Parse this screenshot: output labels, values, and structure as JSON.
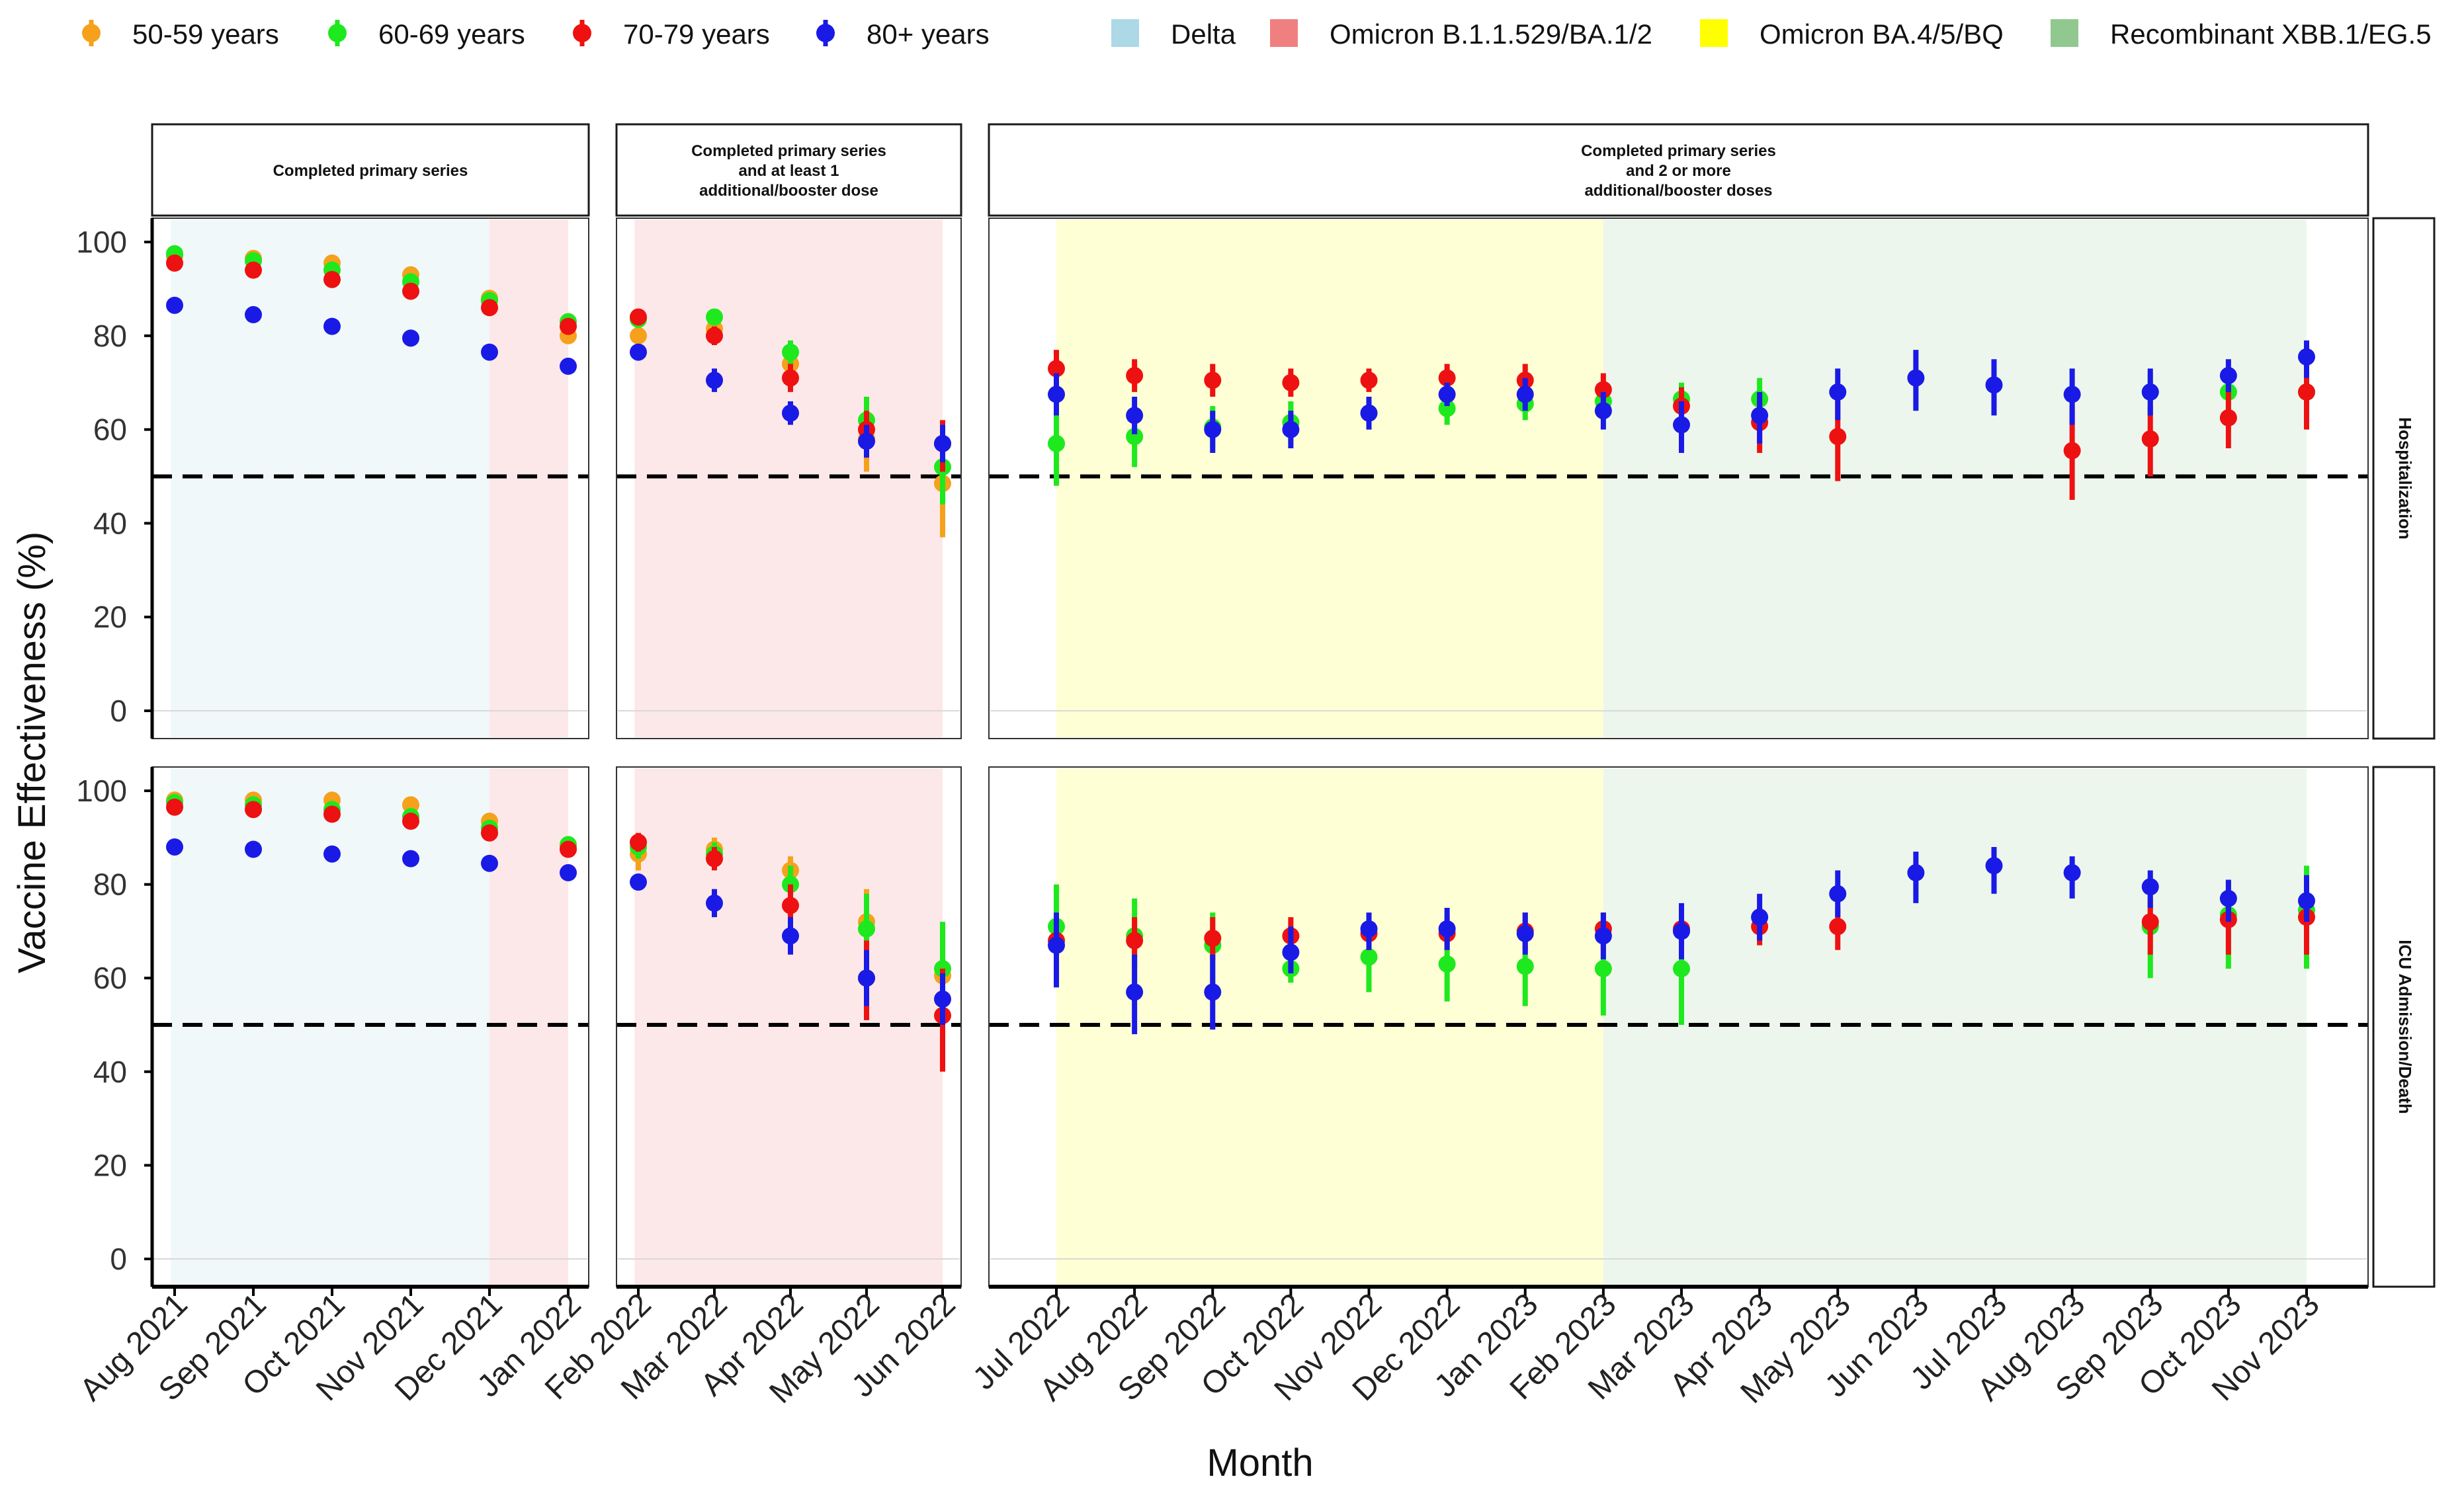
{
  "chart_data": {
    "type": "scatter",
    "ylabel": "Vaccine Effectiveness (%)",
    "xlabel": "Month",
    "ylim": [
      0,
      100
    ],
    "yticks": [
      0,
      20,
      40,
      60,
      80,
      100
    ],
    "reference_line": 50,
    "legend": {
      "placement": "top",
      "age_groups": [
        {
          "label": "50-59 years",
          "color": "#f5a11c"
        },
        {
          "label": "60-69 years",
          "color": "#1ee81e"
        },
        {
          "label": "70-79 years",
          "color": "#ee1111"
        },
        {
          "label": "80+ years",
          "color": "#1a1ae6"
        }
      ],
      "variants": [
        {
          "label": "Delta",
          "color": "#add8e6"
        },
        {
          "label": "Omicron B.1.1.529/BA.1/2",
          "color": "#f08080"
        },
        {
          "label": "Omicron BA.4/5/BQ",
          "color": "#ffff00"
        },
        {
          "label": "Recombinant XBB.1/EG.5",
          "color": "#90c890"
        }
      ]
    },
    "row_titles": [
      "Hospitalization",
      "ICU Admission/Death"
    ],
    "panels": [
      {
        "title": "Completed primary series",
        "months": [
          "Aug 2021",
          "Sep 2021",
          "Oct 2021",
          "Nov 2021",
          "Dec 2021",
          "Jan 2022"
        ],
        "bands": [
          {
            "variant": "Delta",
            "from": "Aug 2021",
            "to": "Dec 2021"
          },
          {
            "variant": "Omicron B.1.1.529/BA.1/2",
            "from": "Dec 2021",
            "to": "Jan 2022"
          }
        ],
        "hospitalization": [
          {
            "age": "50-59 years",
            "values": [
              97,
              96.5,
              95.5,
              93,
              88,
              80
            ]
          },
          {
            "age": "60-69 years",
            "values": [
              97.5,
              96,
              94,
              91.5,
              87.5,
              83
            ]
          },
          {
            "age": "70-79 years",
            "values": [
              95.5,
              94,
              92,
              89.5,
              86,
              82
            ]
          },
          {
            "age": "80+ years",
            "values": [
              86.5,
              84.5,
              82,
              79.5,
              76.5,
              73.5
            ]
          }
        ],
        "icu_death": [
          {
            "age": "50-59 years",
            "values": [
              98,
              98,
              98,
              97,
              93.5,
              88
            ]
          },
          {
            "age": "60-69 years",
            "values": [
              97.5,
              97,
              96,
              94.5,
              92,
              88.5
            ]
          },
          {
            "age": "70-79 years",
            "values": [
              96.5,
              96,
              95,
              93.5,
              91,
              87.5
            ]
          },
          {
            "age": "80+ years",
            "values": [
              88,
              87.5,
              86.5,
              85.5,
              84.5,
              82.5
            ]
          }
        ]
      },
      {
        "title": "Completed primary series\nand at least 1\nadditional/booster dose",
        "months": [
          "Feb 2022",
          "Mar 2022",
          "Apr 2022",
          "May 2022",
          "Jun 2022"
        ],
        "bands": [
          {
            "variant": "Omicron B.1.1.529/BA.1/2",
            "from": "Feb 2022",
            "to": "Jun 2022"
          }
        ],
        "hospitalization": [
          {
            "age": "50-59 years",
            "values": [
              80,
              81.5,
              74,
              58,
              48.5
            ],
            "ci": [
              [
                78,
                82
              ],
              [
                79,
                84
              ],
              [
                71,
                77
              ],
              [
                51,
                65
              ],
              [
                37,
                58
              ]
            ]
          },
          {
            "age": "60-69 years",
            "values": [
              83.5,
              84,
              76.5,
              62,
              52
            ],
            "ci": [
              [
                82,
                85
              ],
              [
                82.5,
                85.5
              ],
              [
                74,
                79
              ],
              [
                57,
                67
              ],
              [
                44,
                58
              ]
            ]
          },
          {
            "age": "70-79 years",
            "values": [
              84,
              80,
              71,
              60,
              57
            ],
            "ci": [
              [
                82.5,
                85.5
              ],
              [
                78,
                82
              ],
              [
                68,
                74
              ],
              [
                56,
                64
              ],
              [
                51,
                62
              ]
            ]
          },
          {
            "age": "80+ years",
            "values": [
              76.5,
              70.5,
              63.5,
              57.5,
              57
            ],
            "ci": [
              [
                75,
                78
              ],
              [
                68,
                73
              ],
              [
                61,
                66
              ],
              [
                54,
                61
              ],
              [
                53,
                61
              ]
            ]
          }
        ],
        "icu_death": [
          {
            "age": "50-59 years",
            "values": [
              86.5,
              87.5,
              83,
              72,
              60.5
            ],
            "ci": [
              [
                83,
                90
              ],
              [
                85,
                90
              ],
              [
                80,
                86
              ],
              [
                64,
                79
              ],
              [
                45,
                72
              ]
            ]
          },
          {
            "age": "60-69 years",
            "values": [
              88,
              86.5,
              80,
              70.5,
              62
            ],
            "ci": [
              [
                85.5,
                90.5
              ],
              [
                84,
                89
              ],
              [
                76,
                84
              ],
              [
                63,
                78
              ],
              [
                48,
                72
              ]
            ]
          },
          {
            "age": "70-79 years",
            "values": [
              89,
              85.5,
              75.5,
              60,
              52
            ],
            "ci": [
              [
                87,
                91
              ],
              [
                83,
                88
              ],
              [
                71,
                80
              ],
              [
                51,
                68
              ],
              [
                40,
                62
              ]
            ]
          },
          {
            "age": "80+ years",
            "values": [
              80.5,
              76,
              69,
              60,
              55.5
            ],
            "ci": [
              [
                79,
                82
              ],
              [
                73,
                79
              ],
              [
                65,
                73
              ],
              [
                54,
                66
              ],
              [
                50,
                61
              ]
            ]
          }
        ]
      },
      {
        "title": "Completed primary series\nand 2 or more\nadditional/booster doses",
        "months": [
          "Jul 2022",
          "Aug 2022",
          "Sep 2022",
          "Oct 2022",
          "Nov 2022",
          "Dec 2022",
          "Jan 2023",
          "Feb 2023",
          "Mar 2023",
          "Apr 2023",
          "May 2023",
          "Jun 2023",
          "Jul 2023",
          "Aug 2023",
          "Sep 2023",
          "Oct 2023",
          "Nov 2023"
        ],
        "bands": [
          {
            "variant": "Omicron BA.4/5/BQ",
            "from": "Jul 2022",
            "to": "Feb 2023"
          },
          {
            "variant": "Recombinant XBB.1/EG.5",
            "from": "Feb 2023",
            "to": "Nov 2023"
          }
        ],
        "hospitalization": [
          {
            "age": "60-69 years",
            "values": [
              57,
              58.5,
              60.5,
              61.5,
              63.5,
              64.5,
              65.5,
              66,
              66.5,
              66.5,
              null,
              null,
              null,
              null,
              68,
              68,
              68
            ],
            "ci": [
              [
                48,
                64
              ],
              [
                52,
                64
              ],
              [
                56,
                65
              ],
              [
                57,
                66
              ],
              [
                60,
                67
              ],
              [
                61,
                68
              ],
              [
                62,
                69
              ],
              [
                62,
                70
              ],
              [
                63,
                70
              ],
              [
                62,
                71
              ],
              null,
              null,
              null,
              null,
              [
                63,
                72
              ],
              [
                64,
                71
              ],
              [
                61,
                75
              ]
            ]
          },
          {
            "age": "70-79 years",
            "values": [
              73,
              71.5,
              70.5,
              70,
              70.5,
              71,
              70.5,
              68.5,
              65,
              61.5,
              58.5,
              null,
              null,
              55.5,
              58,
              62.5,
              68
            ],
            "ci": [
              [
                69,
                77
              ],
              [
                68,
                75
              ],
              [
                67,
                74
              ],
              [
                67,
                73
              ],
              [
                68,
                73
              ],
              [
                68.5,
                74
              ],
              [
                68,
                74
              ],
              [
                65,
                72
              ],
              [
                61,
                69
              ],
              [
                55,
                67
              ],
              [
                49,
                66
              ],
              null,
              null,
              [
                45,
                65
              ],
              [
                50,
                65
              ],
              [
                56,
                69
              ],
              [
                60,
                75
              ]
            ]
          },
          {
            "age": "80+ years",
            "values": [
              67.5,
              63,
              60,
              60,
              63.5,
              67.5,
              67.5,
              64,
              61,
              63,
              68,
              71,
              69.5,
              67.5,
              68,
              71.5,
              75.5
            ],
            "ci": [
              [
                63,
                72
              ],
              [
                59,
                67
              ],
              [
                55,
                64
              ],
              [
                56,
                64
              ],
              [
                60,
                67
              ],
              [
                65,
                70
              ],
              [
                64,
                71
              ],
              [
                60,
                68
              ],
              [
                55,
                66
              ],
              [
                57,
                68
              ],
              [
                62,
                73
              ],
              [
                64,
                77
              ],
              [
                63,
                75
              ],
              [
                61,
                73
              ],
              [
                63,
                73
              ],
              [
                68,
                75
              ],
              [
                71,
                79
              ]
            ]
          }
        ],
        "icu_death": [
          {
            "age": "60-69 years",
            "values": [
              71,
              69,
              67,
              62,
              64.5,
              63,
              62.5,
              62,
              62,
              null,
              null,
              null,
              null,
              null,
              71,
              73.5,
              74.5
            ],
            "ci": [
              [
                62,
                80
              ],
              [
                58,
                77
              ],
              [
                57,
                74
              ],
              [
                59,
                68
              ],
              [
                57,
                71
              ],
              [
                55,
                70
              ],
              [
                54,
                70
              ],
              [
                52,
                69
              ],
              [
                50,
                71
              ],
              null,
              null,
              null,
              null,
              null,
              [
                60,
                79
              ],
              [
                62,
                81
              ],
              [
                62,
                84
              ]
            ]
          },
          {
            "age": "70-79 years",
            "values": [
              68,
              68,
              68.5,
              69,
              69.5,
              69.5,
              70,
              70.5,
              70.5,
              71,
              71,
              null,
              null,
              null,
              72,
              72.5,
              73
            ],
            "ci": [
              [
                61,
                73
              ],
              [
                62,
                73
              ],
              [
                64,
                73
              ],
              [
                65,
                73
              ],
              [
                66,
                73
              ],
              [
                66,
                73
              ],
              [
                66,
                74
              ],
              [
                66,
                74
              ],
              [
                66,
                74
              ],
              [
                67,
                75
              ],
              [
                66,
                75
              ],
              null,
              null,
              null,
              [
                65,
                77
              ],
              [
                65,
                79
              ],
              [
                65,
                80
              ]
            ]
          },
          {
            "age": "80+ years",
            "values": [
              67,
              57,
              57,
              65.5,
              70.5,
              70.5,
              69.5,
              69,
              70,
              73,
              78,
              82.5,
              84,
              82.5,
              79.5,
              77,
              76.5
            ],
            "ci": [
              [
                58,
                74
              ],
              [
                48,
                65
              ],
              [
                49,
                65
              ],
              [
                61,
                71
              ],
              [
                66,
                74
              ],
              [
                66,
                75
              ],
              [
                65,
                74
              ],
              [
                64,
                74
              ],
              [
                64,
                76
              ],
              [
                68,
                78
              ],
              [
                73,
                83
              ],
              [
                76,
                87
              ],
              [
                78,
                88
              ],
              [
                77,
                86
              ],
              [
                75,
                83
              ],
              [
                72,
                81
              ],
              [
                72,
                82
              ]
            ]
          }
        ]
      }
    ]
  }
}
